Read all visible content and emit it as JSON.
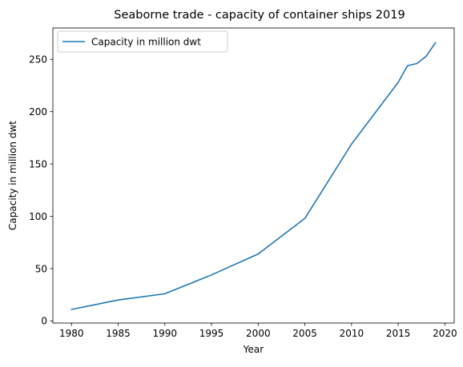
{
  "chart_data": {
    "type": "line",
    "title": "Seaborne trade - capacity of container ships 2019",
    "xlabel": "Year",
    "ylabel": "Capacity in million dwt",
    "xlim": [
      1978,
      2021
    ],
    "ylim": [
      -2,
      280
    ],
    "xticks": [
      1980,
      1985,
      1990,
      1995,
      2000,
      2005,
      2010,
      2015,
      2020
    ],
    "yticks": [
      0,
      50,
      100,
      150,
      200,
      250
    ],
    "grid": false,
    "legend_position": "top-left",
    "series": [
      {
        "name": "Capacity in million dwt",
        "color": "#1f77b4",
        "x": [
          1980,
          1985,
          1990,
          1995,
          2000,
          2005,
          2010,
          2015,
          2016,
          2017,
          2018,
          2019
        ],
        "y": [
          11,
          20,
          26,
          44,
          64,
          98,
          169,
          228,
          244,
          246,
          253,
          266
        ]
      }
    ]
  }
}
